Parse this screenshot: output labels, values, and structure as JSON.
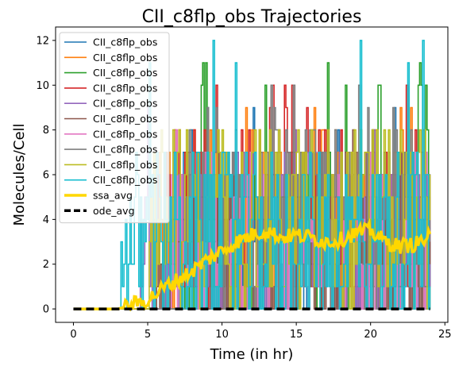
{
  "chart_data": {
    "type": "line",
    "title": "CII_c8flp_obs Trajectories",
    "xlabel": "Time (in hr)",
    "ylabel": "Molecules/Cell",
    "xlim": [
      -1.2,
      25.2
    ],
    "ylim": [
      -0.6,
      12.6
    ],
    "xticks": [
      0,
      5,
      10,
      15,
      20,
      25
    ],
    "yticks": [
      0,
      2,
      4,
      6,
      8,
      10,
      12
    ],
    "grid": false,
    "legend_position": "upper-left",
    "t_end": 24,
    "step": 0.1,
    "trajectory_colors": [
      "#1f77b4",
      "#ff7f0e",
      "#2ca02c",
      "#d62728",
      "#9467bd",
      "#8c564b",
      "#e377c2",
      "#7f7f7f",
      "#bcbd22",
      "#17becf"
    ],
    "series": [
      {
        "name": "CII_c8flp_obs",
        "onset": 6.0,
        "level": [
          0,
          0,
          2,
          4,
          3,
          4,
          3,
          4,
          3,
          3,
          3,
          3,
          3,
          3,
          3,
          3,
          3,
          3,
          3,
          3,
          3,
          3,
          3,
          3,
          3
        ],
        "amp": [
          0,
          0,
          2,
          3,
          4,
          4,
          4,
          4,
          4,
          4,
          4,
          4,
          4,
          4,
          4,
          4,
          4,
          4,
          4,
          4,
          4,
          4,
          4,
          4,
          4
        ],
        "max": 9
      },
      {
        "name": "CII_c8flp_obs",
        "onset": 5.5,
        "level": [
          0,
          0,
          2,
          3,
          4,
          4,
          4,
          4,
          4,
          4,
          4,
          4,
          4,
          4,
          4,
          4,
          4,
          4,
          4,
          4,
          4,
          4,
          4,
          4,
          4
        ],
        "amp": [
          0,
          0,
          2,
          3,
          4,
          4,
          4,
          4,
          4,
          4,
          4,
          4,
          4,
          4,
          4,
          4,
          4,
          4,
          4,
          4,
          4,
          4,
          4,
          4,
          4
        ],
        "max": 9
      },
      {
        "name": "CII_c8flp_obs",
        "onset": 7.0,
        "level": [
          0,
          0,
          1,
          2,
          2,
          3,
          3,
          3,
          3,
          3,
          3,
          3,
          3,
          3,
          3,
          3,
          3,
          3,
          3,
          3,
          3,
          3,
          4,
          5,
          5
        ],
        "amp": [
          0,
          0,
          2,
          3,
          4,
          4,
          4,
          4,
          4,
          4,
          4,
          4,
          4,
          4,
          4,
          4,
          4,
          4,
          4,
          4,
          4,
          4,
          5,
          6,
          6
        ],
        "max": 11
      },
      {
        "name": "CII_c8flp_obs",
        "onset": 6.0,
        "level": [
          0,
          0,
          2,
          3,
          3,
          3,
          4,
          4,
          4,
          4,
          4,
          4,
          4,
          4,
          4,
          4,
          4,
          4,
          4,
          4,
          4,
          4,
          4,
          4,
          4
        ],
        "amp": [
          0,
          0,
          2,
          3,
          4,
          4,
          4,
          4,
          4,
          4,
          4,
          4,
          4,
          4,
          4,
          4,
          4,
          4,
          4,
          4,
          4,
          4,
          4,
          4,
          4
        ],
        "max": 10
      },
      {
        "name": "CII_c8flp_obs",
        "onset": 4.5,
        "level": [
          0,
          0,
          2,
          3,
          3,
          3,
          3,
          3,
          3,
          3,
          3,
          3,
          3,
          3,
          3,
          3,
          3,
          3,
          3,
          3,
          3,
          3,
          3,
          3,
          3
        ],
        "amp": [
          0,
          0,
          2,
          3,
          4,
          4,
          4,
          4,
          4,
          4,
          4,
          4,
          4,
          4,
          4,
          4,
          4,
          4,
          4,
          4,
          4,
          4,
          4,
          4,
          4
        ],
        "max": 9
      },
      {
        "name": "CII_c8flp_obs",
        "onset": 5.5,
        "level": [
          0,
          0,
          2,
          3,
          3,
          3,
          3,
          3,
          3,
          3,
          3,
          3,
          3,
          3,
          3,
          3,
          3,
          3,
          3,
          3,
          3,
          3,
          3,
          3,
          3
        ],
        "amp": [
          0,
          0,
          2,
          3,
          4,
          4,
          4,
          4,
          4,
          4,
          4,
          4,
          4,
          4,
          4,
          4,
          4,
          4,
          4,
          4,
          4,
          4,
          4,
          4,
          4
        ],
        "max": 8
      },
      {
        "name": "CII_c8flp_obs",
        "onset": 6.5,
        "level": [
          0,
          0,
          1,
          2,
          3,
          3,
          3,
          3,
          3,
          3,
          3,
          3,
          3,
          3,
          3,
          3,
          3,
          3,
          3,
          3,
          3,
          3,
          3,
          3,
          3
        ],
        "amp": [
          0,
          0,
          2,
          3,
          4,
          4,
          4,
          4,
          4,
          4,
          4,
          4,
          4,
          4,
          4,
          4,
          4,
          4,
          4,
          4,
          4,
          4,
          4,
          4,
          4
        ],
        "max": 8
      },
      {
        "name": "CII_c8flp_obs",
        "onset": 7.5,
        "level": [
          0,
          0,
          1,
          2,
          3,
          3,
          4,
          4,
          4,
          4,
          4,
          4,
          4,
          4,
          4,
          4,
          4,
          4,
          4,
          4,
          4,
          4,
          4,
          4,
          4
        ],
        "amp": [
          0,
          0,
          2,
          3,
          4,
          4,
          4,
          4,
          4,
          4,
          4,
          4,
          4,
          4,
          4,
          4,
          4,
          4,
          4,
          4,
          4,
          4,
          4,
          4,
          4
        ],
        "max": 10
      },
      {
        "name": "CII_c8flp_obs",
        "onset": 5.0,
        "level": [
          0,
          0,
          2,
          3,
          4,
          4,
          4,
          4,
          4,
          4,
          4,
          4,
          4,
          4,
          4,
          4,
          4,
          4,
          4,
          4,
          4,
          4,
          4,
          4,
          4
        ],
        "amp": [
          0,
          0,
          2,
          3,
          4,
          4,
          4,
          4,
          4,
          4,
          4,
          4,
          4,
          4,
          4,
          4,
          4,
          4,
          4,
          4,
          4,
          4,
          4,
          4,
          4
        ],
        "max": 9
      },
      {
        "name": "CII_c8flp_obs",
        "onset": 3.2,
        "level": [
          0,
          0,
          2,
          3,
          3,
          3,
          3,
          3,
          3,
          3,
          3,
          3,
          3,
          3,
          3,
          3,
          3,
          3,
          3,
          3,
          3,
          3,
          3,
          3,
          3
        ],
        "amp": [
          0,
          0,
          2,
          3,
          4,
          4,
          4,
          4,
          4,
          4,
          4,
          4,
          4,
          4,
          4,
          4,
          4,
          4,
          4,
          4,
          4,
          4,
          4,
          4,
          4
        ],
        "max": 12
      },
      {
        "name": "ssa_avg",
        "color": "#ffd700",
        "x": [
          0,
          1,
          2,
          3,
          4,
          5,
          6,
          7,
          8,
          9,
          10,
          11,
          12,
          13,
          14,
          15,
          16,
          17,
          18,
          19,
          20,
          21,
          22,
          23,
          24
        ],
        "values": [
          0,
          0,
          0,
          0,
          0.2,
          0.4,
          0.9,
          1.3,
          1.7,
          2.2,
          2.6,
          3.0,
          3.3,
          3.5,
          3.2,
          3.3,
          3.2,
          3.0,
          3.1,
          3.4,
          3.5,
          3.0,
          2.8,
          2.9,
          3.2
        ]
      },
      {
        "name": "ode_avg",
        "color": "#000000",
        "x": [
          0,
          24
        ],
        "values": [
          0,
          0
        ]
      }
    ]
  }
}
